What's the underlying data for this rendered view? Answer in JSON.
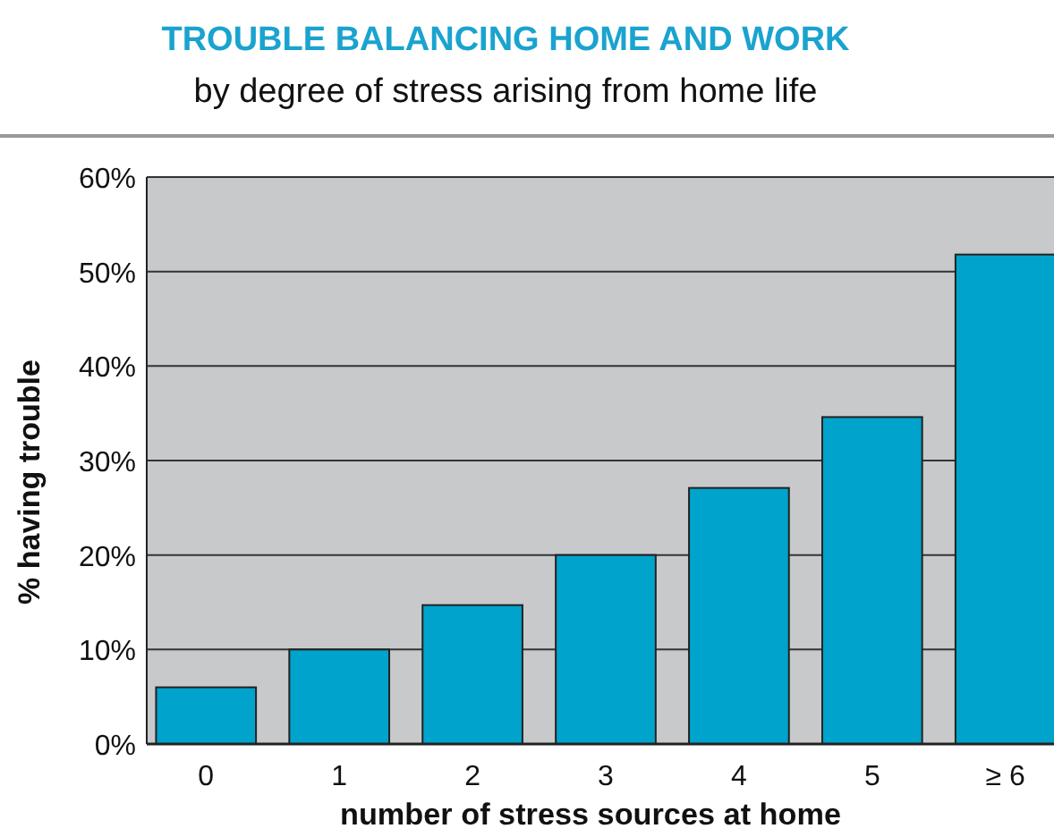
{
  "chart_data": {
    "type": "bar",
    "title": "TROUBLE BALANCING HOME AND WORK",
    "subtitle": "by degree of stress arising from home life",
    "xlabel": "number of stress sources at home",
    "ylabel": "% having trouble",
    "categories": [
      "0",
      "1",
      "2",
      "3",
      "4",
      "5",
      "≥ 6"
    ],
    "values": [
      6,
      10,
      14.7,
      20,
      27.1,
      34.6,
      51.8
    ],
    "color": "#00a3cc",
    "ylim": [
      0,
      60
    ],
    "yticks": [
      {
        "value": 0,
        "label": "0%"
      },
      {
        "value": 10,
        "label": "10%"
      },
      {
        "value": 20,
        "label": "20%"
      },
      {
        "value": 30,
        "label": "30%"
      },
      {
        "value": 40,
        "label": "40%"
      },
      {
        "value": 50,
        "label": "50%"
      },
      {
        "value": 60,
        "label": "60%"
      }
    ],
    "grid": "y"
  }
}
